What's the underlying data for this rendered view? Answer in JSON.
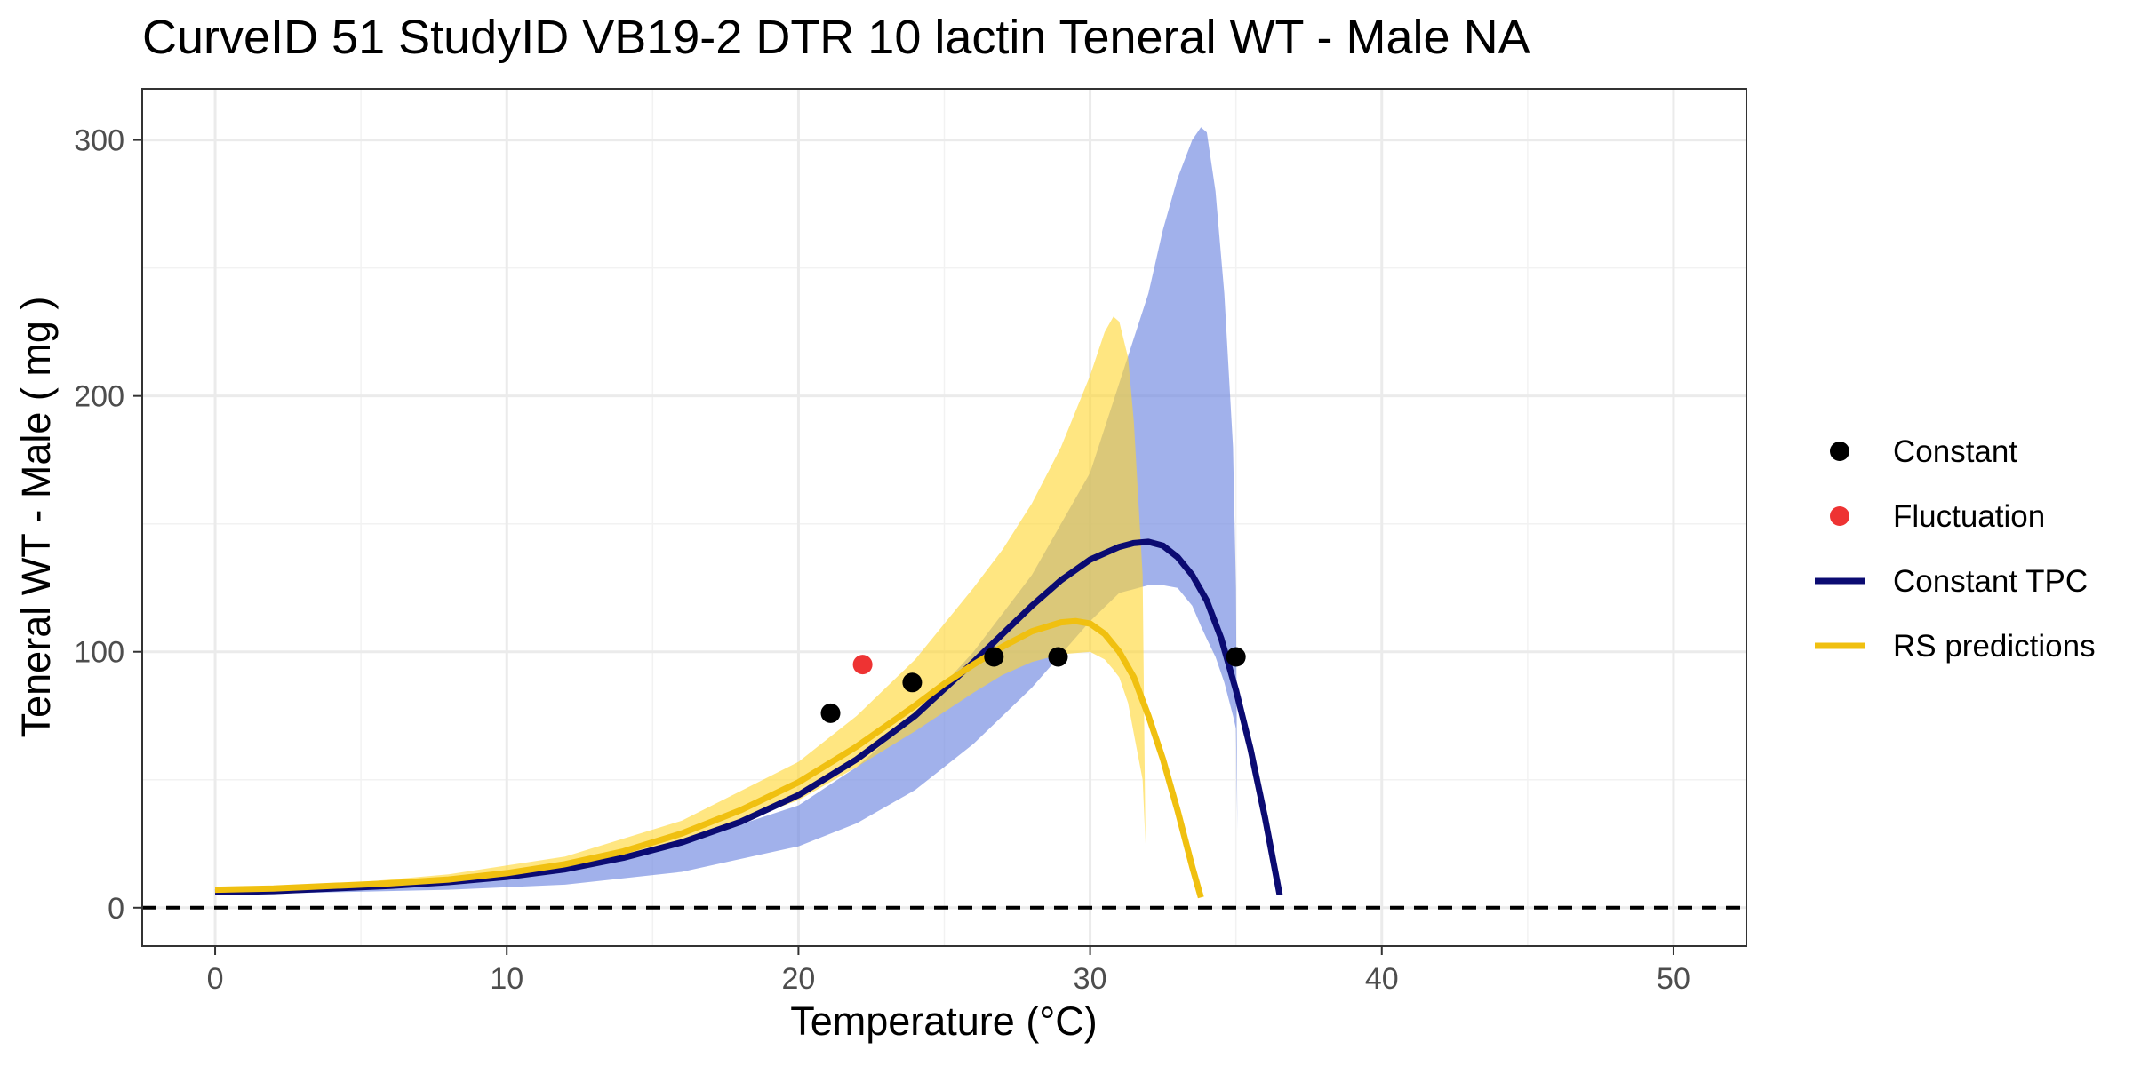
{
  "chart_data": {
    "type": "line",
    "title": "CurveID 51 StudyID VB19-2 DTR 10 lactin Teneral WT - Male NA",
    "xlabel": "Temperature (°C)",
    "ylabel": "Teneral WT - Male ( mg )",
    "xlim": [
      -2.5,
      52.5
    ],
    "ylim": [
      -15,
      320
    ],
    "x_ticks": [
      0,
      10,
      20,
      30,
      40,
      50
    ],
    "x_tick_labels": [
      "0",
      "10",
      "20",
      "30",
      "40",
      "50"
    ],
    "y_ticks": [
      0,
      100,
      200,
      300
    ],
    "y_tick_labels": [
      "0",
      "100",
      "200",
      "300"
    ],
    "grid": true,
    "legend_position": "right",
    "zero_line": {
      "y": 0,
      "style": "dashed",
      "color": "#000000"
    },
    "points": [
      {
        "name": "Constant",
        "color": "#000000",
        "x": [
          21.1,
          23.9,
          26.7,
          28.9,
          35.0
        ],
        "y": [
          76,
          88,
          98,
          98,
          98
        ]
      },
      {
        "name": "Fluctuation",
        "color": "#ee3333",
        "x": [
          22.2
        ],
        "y": [
          95
        ]
      }
    ],
    "series": [
      {
        "name": "Constant TPC",
        "color": "#0b0b72",
        "x": [
          0,
          2,
          4,
          6,
          8,
          10,
          12,
          14,
          16,
          18,
          20,
          22,
          24,
          26,
          27,
          28,
          29,
          30,
          31,
          31.5,
          32,
          32.5,
          33,
          33.5,
          34,
          34.5,
          35,
          35.5,
          36,
          36.5
        ],
        "y": [
          6,
          6.5,
          7.5,
          8.5,
          10,
          12,
          15,
          19.5,
          25.5,
          33.5,
          44,
          58,
          75,
          96,
          107,
          118,
          128,
          136,
          141,
          142.5,
          143,
          141.5,
          137,
          130,
          120,
          105,
          85,
          62,
          35,
          5
        ]
      },
      {
        "name": "RS predictions",
        "color": "#f0c010",
        "x": [
          0,
          2,
          4,
          6,
          8,
          10,
          12,
          14,
          16,
          18,
          20,
          22,
          24,
          25,
          26,
          27,
          28,
          29,
          29.5,
          30,
          30.5,
          31,
          31.5,
          32,
          32.5,
          33,
          33.5,
          33.8
        ],
        "y": [
          7,
          7.5,
          8.5,
          9.5,
          11,
          13.5,
          17,
          22,
          29,
          38,
          49,
          63,
          79,
          87.5,
          95,
          102,
          108,
          111.5,
          112,
          111,
          107,
          100,
          90,
          75,
          58,
          38,
          16,
          4
        ]
      }
    ],
    "bands": [
      {
        "name": "Constant TPC band",
        "color": "#6f87e0",
        "opacity": 0.65,
        "x": [
          0,
          4,
          8,
          12,
          16,
          20,
          22,
          24,
          26,
          28,
          30,
          31,
          32,
          32.5,
          33,
          33.5,
          33.8,
          34,
          34.3,
          34.6,
          34.9,
          35.0,
          35.05
        ],
        "upper": [
          6,
          8,
          11,
          16,
          25,
          40,
          55,
          75,
          100,
          130,
          170,
          205,
          240,
          265,
          285,
          300,
          305,
          303,
          280,
          240,
          180,
          125,
          30
        ],
        "lower": [
          5,
          6,
          7,
          9,
          14,
          24,
          33,
          46,
          64,
          86,
          112,
          123,
          126,
          126,
          125,
          118,
          110,
          105,
          98,
          88,
          75,
          70,
          30
        ]
      },
      {
        "name": "RS predictions band",
        "color": "#ffd633",
        "opacity": 0.62,
        "x": [
          0,
          4,
          8,
          12,
          16,
          20,
          22,
          24,
          26,
          27,
          28,
          29,
          30,
          30.5,
          30.8,
          31,
          31.3,
          31.5,
          31.8,
          31.9
        ],
        "upper": [
          7,
          9,
          13,
          20,
          34,
          57,
          75,
          97,
          125,
          140,
          158,
          180,
          208,
          225,
          231,
          229,
          215,
          190,
          130,
          25
        ],
        "lower": [
          6,
          7,
          10,
          15,
          25,
          42,
          55,
          69,
          84,
          91,
          96,
          99,
          100,
          97,
          93,
          90,
          80,
          68,
          50,
          25
        ]
      }
    ],
    "legend": [
      {
        "label": "Constant",
        "kind": "point",
        "color": "#000000"
      },
      {
        "label": "Fluctuation",
        "kind": "point",
        "color": "#ee3333"
      },
      {
        "label": "Constant TPC",
        "kind": "line",
        "color": "#0b0b72"
      },
      {
        "label": "RS predictions",
        "kind": "line",
        "color": "#f0c010"
      }
    ]
  }
}
